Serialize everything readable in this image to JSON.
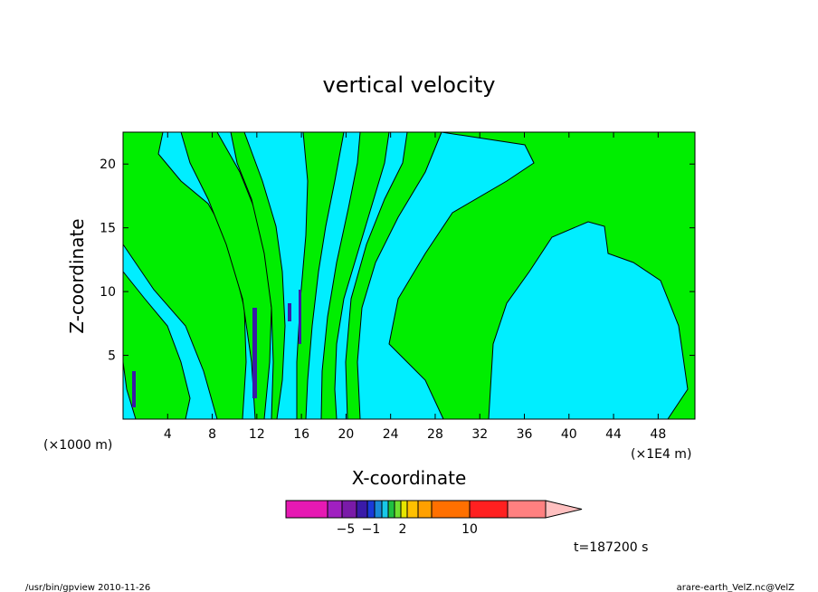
{
  "chart_data": {
    "type": "heatmap",
    "title": "vertical velocity",
    "xlabel": "X-coordinate",
    "ylabel": "Z-coordinate",
    "x_unit": "(×1E4 m)",
    "y_unit": "(×1000 m)",
    "x_ticks": [
      "4",
      "8",
      "12",
      "16",
      "20",
      "24",
      "28",
      "32",
      "36",
      "40",
      "44",
      "48"
    ],
    "y_ticks": [
      "5",
      "10",
      "15",
      "20"
    ],
    "xlim": [
      0,
      51.3
    ],
    "ylim": [
      0,
      22.5
    ],
    "x_tick_values": [
      4,
      8,
      12,
      16,
      20,
      24,
      28,
      32,
      36,
      40,
      44,
      48
    ],
    "y_tick_values": [
      5,
      10,
      15,
      20
    ],
    "colorbar": {
      "colors": [
        "#e619b3",
        "#a020c0",
        "#7a1aa8",
        "#3a1aa8",
        "#1a3ad8",
        "#1a8ad8",
        "#18c8e8",
        "#20c040",
        "#70e030",
        "#e6e600",
        "#ffc000",
        "#ffa000",
        "#ff7000",
        "#ff2020",
        "#ff8080",
        "#ffc0c0"
      ],
      "labels": [
        "−5",
        "−1",
        "2",
        "10"
      ]
    },
    "fields": {
      "green_color": "#00ee00",
      "cyan_color": "#00eeff"
    },
    "time_label": "t=187200 s"
  },
  "footer": {
    "left": "/usr/bin/gpview   2010-11-26",
    "right": "arare-earth_VelZ.nc@VelZ"
  }
}
